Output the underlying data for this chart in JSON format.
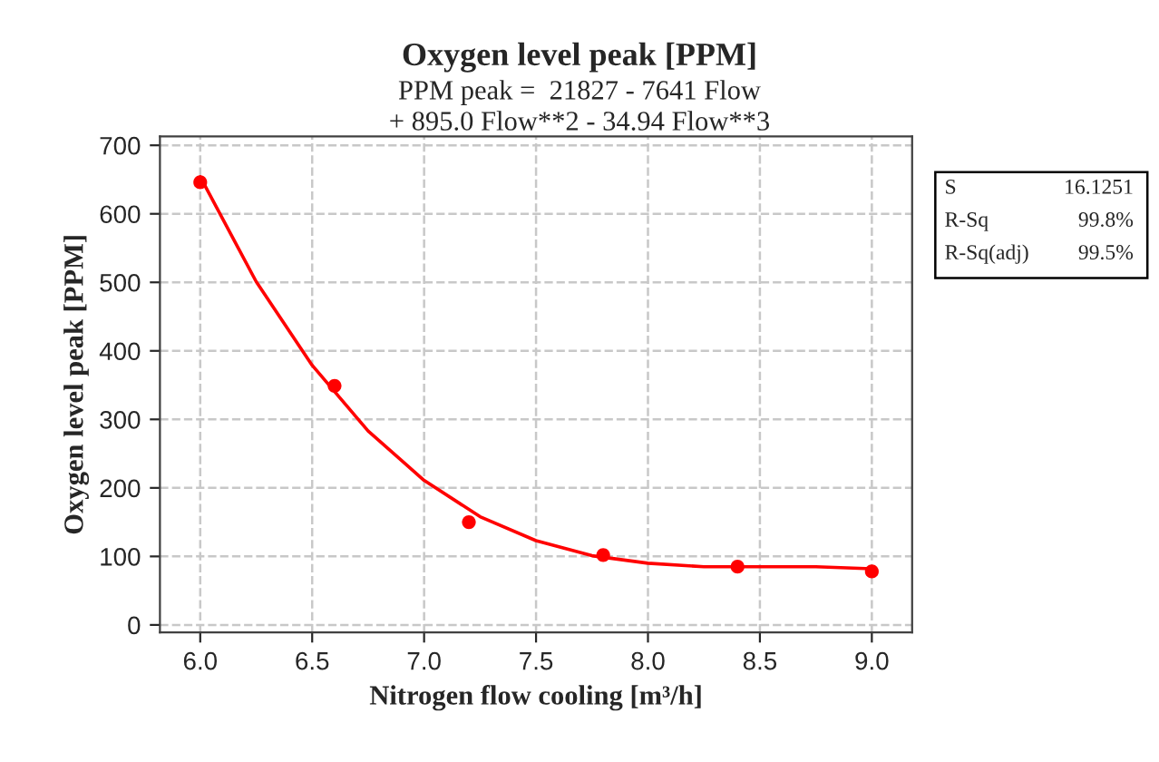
{
  "chart_data": {
    "type": "scatter",
    "title": "Oxygen level peak [PPM]",
    "subtitle": "PPM peak =  21827 - 7641 Flow\n+ 895.0 Flow**2 - 34.94 Flow**3",
    "xlabel": "Nitrogen flow cooling [m³/h]",
    "ylabel": "Oxygen level peak [PPM]",
    "series": [
      {
        "marker": "circle",
        "color": "#ff0000",
        "x": [
          6.0,
          6.6,
          7.2,
          7.8,
          8.4,
          9.0
        ],
        "values": [
          646,
          349,
          150,
          102,
          85,
          78
        ]
      },
      {
        "type": "line",
        "marker": "none",
        "line_style": "solid",
        "color": "#ff0000",
        "x": [
          6.0,
          6.25,
          6.5,
          6.75,
          7.0,
          7.25,
          7.5,
          7.75,
          8.0,
          8.25,
          8.5,
          8.75,
          9.0
        ],
        "values": [
          654,
          501,
          379,
          283,
          211,
          158,
          123,
          101,
          90,
          85,
          85,
          85,
          82
        ]
      }
    ],
    "xlim": [
      5.82,
      9.18
    ],
    "xticks": [
      {
        "value": 6.0,
        "label": "6.0"
      },
      {
        "value": 6.5,
        "label": "6.5"
      },
      {
        "value": 7.0,
        "label": "7.0"
      },
      {
        "value": 7.5,
        "label": "7.5"
      },
      {
        "value": 8.0,
        "label": "8.0"
      },
      {
        "value": 8.5,
        "label": "8.5"
      },
      {
        "value": 9.0,
        "label": "9.0"
      }
    ],
    "ylim": [
      -11,
      713
    ],
    "yticks": [
      0,
      100,
      200,
      300,
      400,
      500,
      600,
      700
    ],
    "grid": true,
    "annotations": [
      "S",
      "16.1251",
      "R-Sq",
      "99.8%",
      "R-Sq(adj)",
      "99.5%"
    ]
  }
}
